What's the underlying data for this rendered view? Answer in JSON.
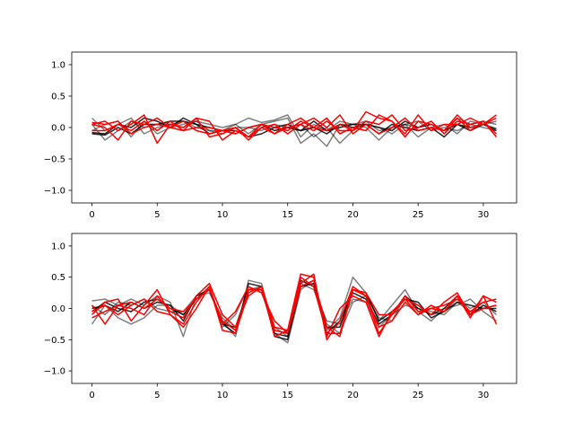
{
  "chart_data": [
    {
      "type": "line",
      "title": "",
      "xlabel": "",
      "ylabel": "",
      "xlim": [
        -1.55,
        32.55
      ],
      "ylim": [
        -1.2,
        1.2
      ],
      "xticks": [
        0,
        5,
        10,
        15,
        20,
        25,
        30
      ],
      "xtick_labels": [
        "0",
        "5",
        "10",
        "15",
        "20",
        "25",
        "30"
      ],
      "yticks": [
        -1.0,
        -0.5,
        0.0,
        0.5,
        1.0
      ],
      "ytick_labels": [
        "−1.0",
        "−0.5",
        "0.0",
        "0.5",
        "1.0"
      ],
      "x": [
        0,
        1,
        2,
        3,
        4,
        5,
        6,
        7,
        8,
        9,
        10,
        11,
        12,
        13,
        14,
        15,
        16,
        17,
        18,
        19,
        20,
        21,
        22,
        23,
        24,
        25,
        26,
        27,
        28,
        29,
        30,
        31
      ],
      "series": [
        {
          "color": "#000000",
          "opacity": 0.5,
          "values": [
            0.15,
            -0.05,
            0.05,
            0.15,
            -0.1,
            0.0,
            0.05,
            0.1,
            0.0,
            -0.05,
            -0.05,
            0.05,
            0.15,
            0.08,
            0.12,
            0.2,
            -0.15,
            0.05,
            -0.05,
            0.1,
            0.05,
            0.1,
            -0.05,
            0.0,
            0.05,
            0.0,
            0.1,
            -0.1,
            0.15,
            0.05,
            0.1,
            0.05
          ]
        },
        {
          "color": "#000000",
          "opacity": 0.5,
          "values": [
            0.05,
            -0.2,
            -0.05,
            0.1,
            0.0,
            0.05,
            0.05,
            0.0,
            0.1,
            0.05,
            0.0,
            0.05,
            -0.1,
            0.05,
            0.1,
            0.15,
            -0.25,
            -0.1,
            -0.3,
            0.05,
            0.05,
            0.0,
            -0.2,
            0.0,
            0.05,
            0.1,
            -0.05,
            0.0,
            -0.05,
            0.05,
            0.0,
            -0.05
          ]
        },
        {
          "color": "#000000",
          "opacity": 0.5,
          "values": [
            -0.05,
            0.05,
            0.1,
            -0.15,
            0.1,
            -0.1,
            0.0,
            0.05,
            0.1,
            -0.05,
            -0.1,
            0.0,
            0.0,
            -0.05,
            0.05,
            0.0,
            0.05,
            -0.15,
            0.0,
            -0.25,
            -0.05,
            0.05,
            0.0,
            -0.1,
            0.05,
            -0.15,
            0.0,
            0.05,
            -0.1,
            0.1,
            0.05,
            0.1
          ]
        },
        {
          "color": "#000000",
          "opacity": 0.85,
          "values": [
            -0.08,
            -0.1,
            0.05,
            0.0,
            0.15,
            0.1,
            0.0,
            0.15,
            0.05,
            0.0,
            -0.05,
            -0.05,
            -0.15,
            -0.1,
            0.0,
            0.05,
            -0.05,
            0.1,
            -0.05,
            0.0,
            0.05,
            0.05,
            0.0,
            -0.05,
            0.1,
            0.0,
            0.05,
            -0.05,
            0.05,
            0.0,
            0.05,
            -0.05
          ]
        },
        {
          "color": "#000000",
          "opacity": 0.85,
          "values": [
            -0.1,
            -0.12,
            0.0,
            -0.1,
            0.05,
            0.05,
            0.1,
            0.1,
            0.05,
            -0.1,
            -0.05,
            -0.1,
            0.0,
            0.05,
            -0.05,
            0.0,
            -0.05,
            0.0,
            -0.1,
            0.05,
            0.0,
            0.05,
            -0.1,
            0.05,
            0.0,
            -0.05,
            0.0,
            -0.15,
            0.05,
            -0.05,
            0.05,
            -0.02
          ]
        },
        {
          "color": "#ff0000",
          "opacity": 1,
          "values": [
            0.05,
            0.1,
            -0.05,
            0.05,
            0.2,
            -0.25,
            0.05,
            0.0,
            0.15,
            0.1,
            -0.2,
            -0.05,
            -0.15,
            0.05,
            -0.1,
            0.0,
            0.05,
            -0.05,
            0.1,
            -0.05,
            -0.05,
            0.25,
            0.15,
            0.1,
            -0.1,
            0.2,
            -0.05,
            0.05,
            0.05,
            0.15,
            0.05,
            0.2
          ]
        },
        {
          "color": "#ff0000",
          "opacity": 1,
          "values": [
            0.05,
            0.0,
            -0.2,
            0.1,
            0.05,
            0.15,
            0.0,
            -0.05,
            0.0,
            0.0,
            -0.05,
            0.0,
            -0.15,
            0.0,
            -0.1,
            0.05,
            0.15,
            0.0,
            0.15,
            -0.1,
            0.0,
            -0.05,
            0.2,
            0.1,
            -0.15,
            0.1,
            0.05,
            -0.05,
            0.15,
            -0.05,
            0.1,
            -0.1
          ]
        },
        {
          "color": "#ff0000",
          "opacity": 1,
          "values": [
            -0.05,
            -0.05,
            0.05,
            -0.05,
            0.1,
            -0.05,
            0.1,
            -0.05,
            0.15,
            -0.15,
            -0.1,
            0.0,
            -0.2,
            0.0,
            0.05,
            -0.1,
            0.05,
            0.15,
            0.0,
            0.2,
            -0.1,
            0.05,
            -0.1,
            0.0,
            0.15,
            -0.05,
            0.0,
            -0.05,
            0.2,
            0.0,
            0.05,
            0.15
          ]
        },
        {
          "color": "#ff0000",
          "opacity": 1,
          "values": [
            0.08,
            0.05,
            0.1,
            -0.1,
            0.0,
            0.05,
            0.0,
            0.1,
            -0.05,
            -0.1,
            -0.05,
            -0.1,
            0.0,
            0.05,
            0.0,
            -0.05,
            0.1,
            0.0,
            -0.05,
            0.05,
            -0.05,
            0.1,
            0.05,
            0.2,
            -0.05,
            0.0,
            0.1,
            -0.1,
            0.1,
            0.05,
            0.1,
            -0.15
          ]
        }
      ]
    },
    {
      "type": "line",
      "title": "",
      "xlabel": "",
      "ylabel": "",
      "xlim": [
        -1.55,
        32.55
      ],
      "ylim": [
        -1.2,
        1.2
      ],
      "xticks": [
        0,
        5,
        10,
        15,
        20,
        25,
        30
      ],
      "xtick_labels": [
        "0",
        "5",
        "10",
        "15",
        "20",
        "25",
        "30"
      ],
      "yticks": [
        -1.0,
        -0.5,
        0.0,
        0.5,
        1.0
      ],
      "ytick_labels": [
        "−1.0",
        "−0.5",
        "0.0",
        "0.5",
        "1.0"
      ],
      "x": [
        0,
        1,
        2,
        3,
        4,
        5,
        6,
        7,
        8,
        9,
        10,
        11,
        12,
        13,
        14,
        15,
        16,
        17,
        18,
        19,
        20,
        21,
        22,
        23,
        24,
        25,
        26,
        27,
        28,
        29,
        30,
        31
      ],
      "series": [
        {
          "color": "#000000",
          "opacity": 0.5,
          "values": [
            0.12,
            0.15,
            0.05,
            0.15,
            0.05,
            0.2,
            0.1,
            -0.45,
            0.2,
            0.3,
            -0.2,
            -0.45,
            0.45,
            0.4,
            -0.4,
            -0.55,
            0.3,
            0.45,
            -0.35,
            -0.15,
            0.5,
            0.25,
            -0.2,
            0.05,
            0.3,
            -0.05,
            -0.2,
            0.0,
            0.05,
            0.15,
            -0.05,
            -0.2
          ]
        },
        {
          "color": "#000000",
          "opacity": 0.5,
          "values": [
            -0.25,
            0.05,
            -0.15,
            -0.25,
            -0.15,
            0.05,
            0.05,
            -0.1,
            0.15,
            0.35,
            -0.3,
            -0.1,
            0.35,
            0.25,
            -0.3,
            -0.45,
            0.4,
            0.3,
            -0.2,
            -0.25,
            0.15,
            0.1,
            -0.3,
            -0.1,
            0.05,
            0.0,
            -0.05,
            -0.1,
            0.1,
            -0.05,
            0.0,
            0.05
          ]
        },
        {
          "color": "#000000",
          "opacity": 0.5,
          "values": [
            0.05,
            -0.1,
            0.1,
            0.05,
            0.15,
            0.0,
            -0.05,
            -0.05,
            0.2,
            0.25,
            -0.15,
            -0.35,
            0.3,
            0.35,
            -0.35,
            -0.4,
            0.35,
            0.4,
            -0.25,
            -0.4,
            0.1,
            0.2,
            -0.15,
            -0.2,
            0.2,
            0.05,
            -0.1,
            -0.05,
            0.15,
            0.0,
            0.1,
            -0.1
          ]
        },
        {
          "color": "#000000",
          "opacity": 0.85,
          "values": [
            0.0,
            0.05,
            -0.05,
            0.1,
            0.0,
            0.1,
            0.05,
            -0.2,
            0.2,
            0.3,
            -0.25,
            -0.4,
            0.4,
            0.35,
            -0.45,
            -0.5,
            0.35,
            0.4,
            -0.3,
            -0.3,
            0.3,
            0.25,
            -0.2,
            -0.05,
            0.15,
            0.1,
            -0.15,
            -0.05,
            0.1,
            0.05,
            0.0,
            0.0
          ]
        },
        {
          "color": "#000000",
          "opacity": 0.85,
          "values": [
            -0.05,
            0.1,
            0.0,
            -0.05,
            0.1,
            0.15,
            0.0,
            -0.1,
            0.15,
            0.3,
            -0.25,
            -0.3,
            0.3,
            0.3,
            -0.4,
            -0.45,
            0.45,
            0.35,
            -0.4,
            -0.2,
            0.25,
            0.15,
            -0.25,
            -0.1,
            0.2,
            0.0,
            -0.1,
            0.0,
            0.2,
            -0.1,
            0.05,
            -0.05
          ]
        },
        {
          "color": "#ff0000",
          "opacity": 1,
          "values": [
            -0.1,
            0.1,
            0.15,
            -0.2,
            0.05,
            0.3,
            -0.1,
            -0.25,
            0.1,
            0.35,
            -0.35,
            -0.4,
            0.25,
            0.35,
            -0.3,
            -0.35,
            0.55,
            0.5,
            -0.45,
            0.0,
            0.2,
            0.1,
            -0.45,
            -0.05,
            0.15,
            0.05,
            -0.1,
            0.1,
            0.25,
            -0.1,
            0.2,
            -0.25
          ]
        },
        {
          "color": "#ff0000",
          "opacity": 1,
          "values": [
            0.05,
            -0.25,
            0.05,
            0.0,
            -0.1,
            0.2,
            -0.05,
            -0.15,
            0.2,
            0.4,
            -0.1,
            -0.3,
            0.2,
            0.35,
            -0.45,
            -0.35,
            0.4,
            0.55,
            -0.5,
            -0.2,
            0.35,
            0.2,
            -0.3,
            -0.2,
            0.1,
            -0.1,
            0.0,
            -0.05,
            0.2,
            -0.15,
            0.2,
            0.1
          ]
        },
        {
          "color": "#ff0000",
          "opacity": 1,
          "values": [
            -0.15,
            -0.05,
            0.05,
            0.1,
            0.0,
            0.15,
            0.0,
            -0.05,
            0.15,
            0.3,
            -0.2,
            -0.35,
            0.3,
            0.3,
            -0.35,
            -0.4,
            0.35,
            0.45,
            -0.3,
            -0.45,
            0.3,
            0.2,
            -0.4,
            -0.1,
            0.2,
            -0.05,
            0.0,
            0.05,
            0.15,
            -0.05,
            0.1,
            0.15
          ]
        },
        {
          "color": "#ff0000",
          "opacity": 1,
          "values": [
            -0.05,
            0.05,
            -0.1,
            0.05,
            0.15,
            -0.05,
            -0.1,
            -0.3,
            0.0,
            0.35,
            -0.25,
            -0.05,
            0.35,
            0.25,
            -0.2,
            -0.4,
            0.5,
            0.35,
            -0.4,
            -0.4,
            0.3,
            0.25,
            -0.1,
            -0.1,
            0.15,
            -0.1,
            0.05,
            -0.05,
            0.2,
            -0.1,
            0.0,
            0.05
          ]
        }
      ]
    }
  ]
}
